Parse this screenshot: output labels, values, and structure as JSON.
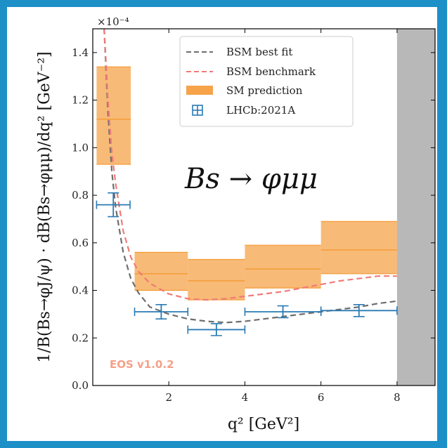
{
  "chart_data": {
    "type": "line",
    "xlabel": "q² [GeV²]",
    "ylabel": "1/B(Bs→φJ/ψ) · dB(Bs→φμμ)/dq² [GeV⁻²]",
    "y_scale_label": "×10⁻⁴",
    "xlim": [
      0,
      9.0
    ],
    "ylim": [
      0,
      1.5
    ],
    "x_ticks": [
      2,
      4,
      6,
      8
    ],
    "x_tick_labels": [
      "2",
      "4",
      "6",
      "8"
    ],
    "y_ticks": [
      0.0,
      0.2,
      0.4,
      0.6,
      0.8,
      1.0,
      1.2,
      1.4
    ],
    "y_tick_labels": [
      "0.0",
      "0.2",
      "0.4",
      "0.6",
      "0.8",
      "1.0",
      "1.2",
      "1.4"
    ],
    "annotation": "Bs → φμμ",
    "watermark": "EOS v1.0.2",
    "shaded_region": {
      "x": [
        8.0,
        9.0
      ],
      "color": "#b8b8b8"
    },
    "legend": {
      "position": "top-right",
      "entries": [
        "BSM best fit",
        "BSM benchmark",
        "SM prediction",
        "LHCb:2021A"
      ]
    },
    "series": [
      {
        "name": "BSM best fit",
        "style": "dashed",
        "color": "#6e6e6e",
        "x": [
          0.3,
          0.4,
          0.5,
          0.6,
          0.8,
          1.0,
          1.2,
          1.5,
          2.0,
          2.5,
          3.0,
          3.5,
          4.0,
          4.5,
          5.0,
          5.5,
          6.0,
          6.5,
          7.0,
          7.5,
          8.0
        ],
        "y": [
          1.5,
          1.15,
          0.9,
          0.75,
          0.56,
          0.45,
          0.39,
          0.33,
          0.3,
          0.28,
          0.27,
          0.265,
          0.27,
          0.28,
          0.29,
          0.3,
          0.31,
          0.32,
          0.33,
          0.345,
          0.355
        ]
      },
      {
        "name": "BSM benchmark",
        "style": "dashed",
        "color": "#f07a78",
        "x": [
          0.3,
          0.4,
          0.5,
          0.6,
          0.8,
          1.0,
          1.2,
          1.5,
          2.0,
          2.5,
          3.0,
          3.5,
          4.0,
          4.5,
          5.0,
          5.5,
          6.0,
          6.5,
          7.0,
          7.5,
          8.0
        ],
        "y": [
          1.5,
          1.2,
          0.98,
          0.85,
          0.65,
          0.54,
          0.48,
          0.43,
          0.385,
          0.365,
          0.36,
          0.365,
          0.375,
          0.385,
          0.395,
          0.41,
          0.425,
          0.44,
          0.45,
          0.46,
          0.46
        ]
      }
    ],
    "sm_prediction": {
      "name": "SM prediction",
      "color": "#f6a34a",
      "bins": [
        {
          "x": [
            0.1,
            1.0
          ],
          "low": 0.93,
          "central": 1.12,
          "high": 1.34
        },
        {
          "x": [
            1.1,
            2.5
          ],
          "low": 0.4,
          "central": 0.47,
          "high": 0.56
        },
        {
          "x": [
            2.5,
            4.0
          ],
          "low": 0.36,
          "central": 0.44,
          "high": 0.53
        },
        {
          "x": [
            4.0,
            6.0
          ],
          "low": 0.41,
          "central": 0.49,
          "high": 0.59
        },
        {
          "x": [
            6.0,
            8.0
          ],
          "low": 0.47,
          "central": 0.57,
          "high": 0.69
        }
      ]
    },
    "measurement": {
      "name": "LHCb:2021A",
      "color": "#2a7ab4",
      "points": [
        {
          "x": [
            0.1,
            0.98
          ],
          "y": 0.76,
          "yerr": [
            0.05,
            0.05
          ]
        },
        {
          "x": [
            1.1,
            2.5
          ],
          "y": 0.31,
          "yerr": [
            0.03,
            0.03
          ]
        },
        {
          "x": [
            2.5,
            4.0
          ],
          "y": 0.235,
          "yerr": [
            0.025,
            0.025
          ]
        },
        {
          "x": [
            4.0,
            6.0
          ],
          "y": 0.31,
          "yerr": [
            0.025,
            0.025
          ]
        },
        {
          "x": [
            6.0,
            8.0
          ],
          "y": 0.315,
          "yerr": [
            0.025,
            0.025
          ]
        }
      ]
    }
  }
}
